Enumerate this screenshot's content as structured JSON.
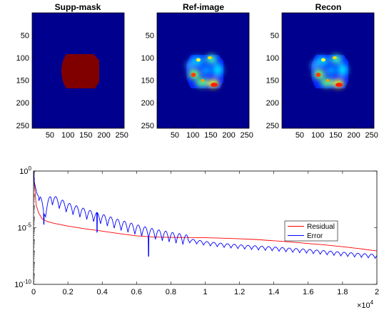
{
  "colors": {
    "background_blue": "#00008f",
    "mask_red": "#800000",
    "residual": "#ff0000",
    "error": "#0000ff"
  },
  "chart_data": [
    {
      "type": "heatmap",
      "title": "Supp-mask",
      "xlim": [
        1,
        256
      ],
      "ylim": [
        1,
        256
      ],
      "xticks": [
        "50",
        "100",
        "150",
        "200",
        "250"
      ],
      "yticks": [
        "50",
        "100",
        "150",
        "200",
        "250"
      ],
      "content": "uniform mask region ~x 80-175, y 90-165"
    },
    {
      "type": "heatmap",
      "title": "Ref-image",
      "xlim": [
        1,
        256
      ],
      "ylim": [
        1,
        256
      ],
      "xticks": [
        "50",
        "100",
        "150",
        "200",
        "250"
      ],
      "yticks": [
        "50",
        "100",
        "150",
        "200",
        "250"
      ]
    },
    {
      "type": "heatmap",
      "title": "Recon",
      "xlim": [
        1,
        256
      ],
      "ylim": [
        1,
        256
      ],
      "xticks": [
        "50",
        "100",
        "150",
        "200",
        "250"
      ],
      "yticks": [
        "50",
        "100",
        "150",
        "200",
        "250"
      ]
    },
    {
      "type": "line",
      "title": "",
      "yscale": "log",
      "xlim": [
        0,
        20000
      ],
      "ylim": [
        1e-10,
        1
      ],
      "xticks": [
        "0",
        "0.2",
        "0.4",
        "0.6",
        "0.8",
        "1",
        "1.2",
        "1.4",
        "1.6",
        "1.8",
        "2"
      ],
      "xtick_multiplier": "×10",
      "xtick_multiplier_exp": "4",
      "yticks": [
        {
          "base": "10",
          "exp": "0",
          "value": 1
        },
        {
          "base": "10",
          "exp": "-5",
          "value": 1e-05
        },
        {
          "base": "10",
          "exp": "-10",
          "value": 1e-10
        }
      ],
      "legend": "upper-right-inside",
      "series": [
        {
          "name": "Residual",
          "color": "#ff0000",
          "points": [
            [
              0,
              1
            ],
            [
              50,
              0.1
            ],
            [
              150,
              0.001
            ],
            [
              300,
              0.0002
            ],
            [
              500,
              6e-05
            ],
            [
              800,
              3.5e-05
            ],
            [
              1200,
              2.4e-05
            ],
            [
              2000,
              1.4e-05
            ],
            [
              3000,
              8e-06
            ],
            [
              4000,
              5e-06
            ],
            [
              5000,
              3e-06
            ],
            [
              6000,
              1.9e-06
            ],
            [
              7000,
              1.5e-06
            ],
            [
              8000,
              1.4e-06
            ],
            [
              9000,
              1.35e-06
            ],
            [
              10000,
              1.3e-06
            ],
            [
              11000,
              1.2e-06
            ],
            [
              12000,
              1.05e-06
            ],
            [
              13000,
              9e-07
            ],
            [
              14000,
              7e-07
            ],
            [
              15000,
              5.5e-07
            ],
            [
              16000,
              4e-07
            ],
            [
              17000,
              3e-07
            ],
            [
              18000,
              2.1e-07
            ],
            [
              19000,
              1.4e-07
            ],
            [
              20000,
              9e-08
            ]
          ]
        },
        {
          "name": "Error",
          "color": "#0000ff",
          "trend": [
            [
              0,
              1
            ],
            [
              50,
              0.1
            ],
            [
              200,
              0.01
            ],
            [
              400,
              0.003
            ],
            [
              600,
              0.0001
            ],
            [
              1000,
              0.003
            ],
            [
              2000,
              0.0005
            ],
            [
              3000,
              0.00015
            ],
            [
              4000,
              5e-05
            ],
            [
              5000,
              1.6e-05
            ],
            [
              6000,
              6e-06
            ],
            [
              7000,
              2.5e-06
            ],
            [
              8000,
              1.3e-06
            ],
            [
              9000,
              7e-07
            ],
            [
              10000,
              4e-07
            ],
            [
              11000,
              2.7e-07
            ],
            [
              12000,
              2e-07
            ],
            [
              13000,
              1.6e-07
            ],
            [
              14000,
              1.3e-07
            ],
            [
              15000,
              1e-07
            ],
            [
              16000,
              8e-08
            ],
            [
              17000,
              6e-08
            ],
            [
              18000,
              4.5e-08
            ],
            [
              19000,
              3.5e-08
            ],
            [
              20000,
              2.8e-08
            ]
          ],
          "oscillation_period": 400,
          "notable_dips": [
            [
              600,
              2e-05
            ],
            [
              3700,
              4e-06
            ],
            [
              6700,
              3e-08
            ]
          ]
        }
      ]
    }
  ]
}
